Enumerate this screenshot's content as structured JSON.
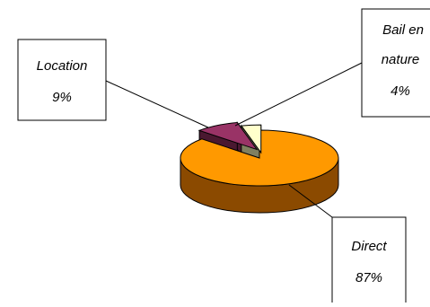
{
  "chart_data": {
    "type": "pie",
    "title": "",
    "exploded": true,
    "three_d": true,
    "slices": [
      {
        "name": "Direct",
        "percent_label": "87%",
        "value": 87,
        "top_color": "#FF9900",
        "side_color": "#8B4A00"
      },
      {
        "name": "Location",
        "percent_label": "9%",
        "value": 9,
        "top_color": "#993366",
        "side_color": "#4A1830"
      },
      {
        "name": "Bail en nature",
        "name_lines": [
          "Bail en",
          "nature"
        ],
        "percent_label": "4%",
        "value": 4,
        "top_color": "#FFFFCC",
        "side_color": "#808060"
      }
    ]
  }
}
